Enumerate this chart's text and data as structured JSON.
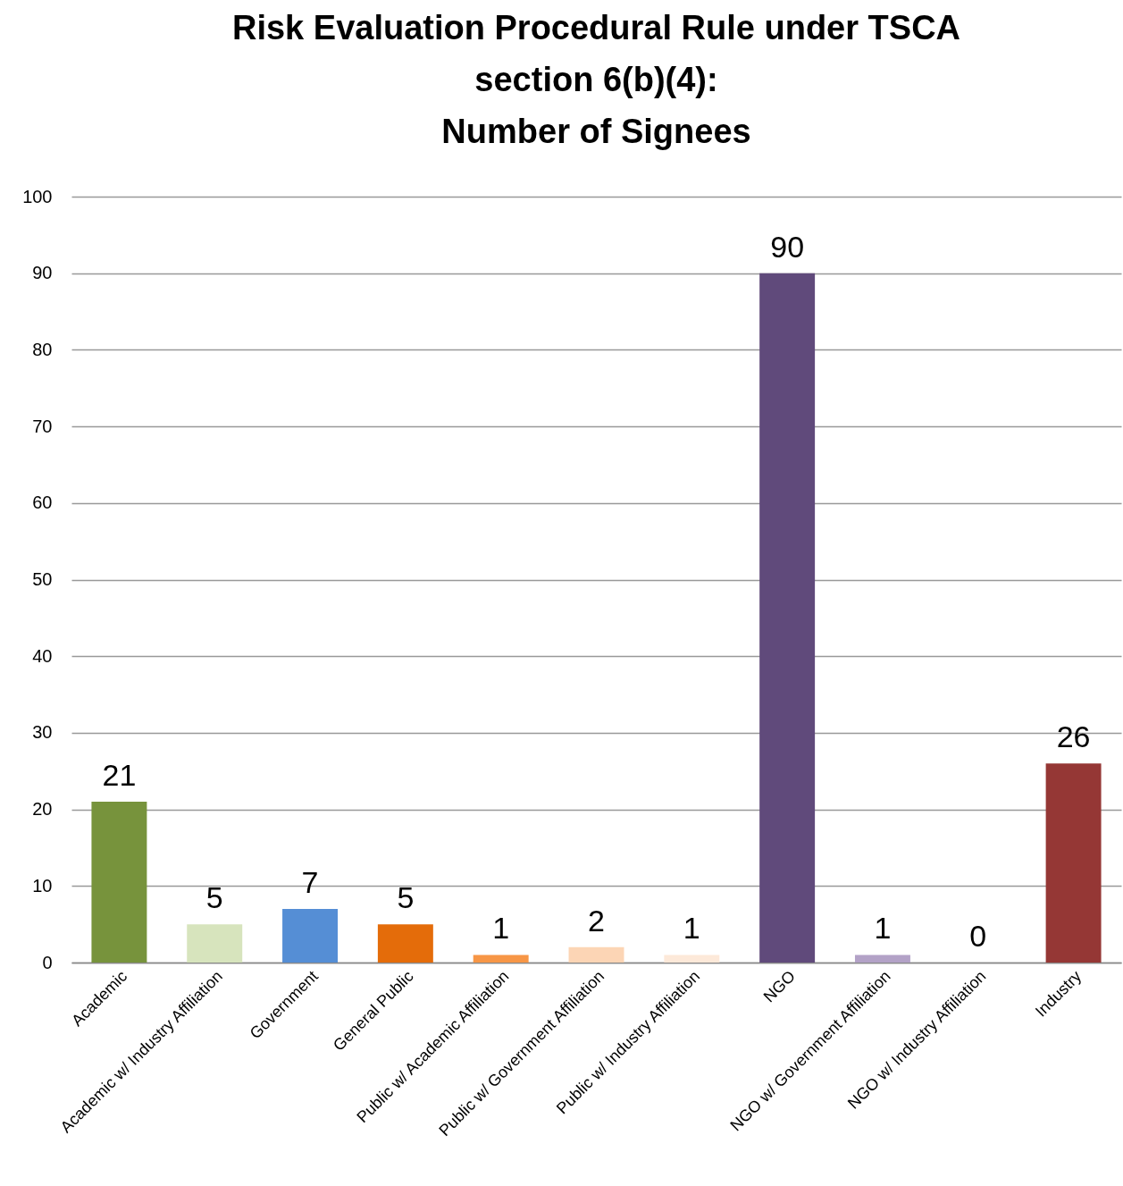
{
  "chart_data": {
    "type": "bar",
    "title": "Risk Evaluation Procedural Rule under TSCA\nsection 6(b)(4):\nNumber of Signees",
    "categories": [
      "Academic",
      "Academic w/ Industry Affiliation",
      "Government",
      "General  Public",
      "Public w/ Academic Affiliation",
      "Public w/ Government Affiliation",
      "Public w/ Industry Affiliation",
      "NGO",
      "NGO w/ Government Affiliation",
      "NGO w/ Industry Affiliation",
      "Industry"
    ],
    "values": [
      21,
      5,
      7,
      5,
      1,
      2,
      1,
      90,
      1,
      0,
      26
    ],
    "colors": [
      "#77933c",
      "#d7e4bd",
      "#558ed5",
      "#e46c0a",
      "#f79646",
      "#fcd5b5",
      "#fde9d9",
      "#604a7b",
      "#b3a2c7",
      "#403152",
      "#953735"
    ],
    "ylim": [
      0,
      100
    ],
    "yticks": [
      0,
      10,
      20,
      30,
      40,
      50,
      60,
      70,
      80,
      90,
      100
    ],
    "grid": "y",
    "data_labels": true
  }
}
